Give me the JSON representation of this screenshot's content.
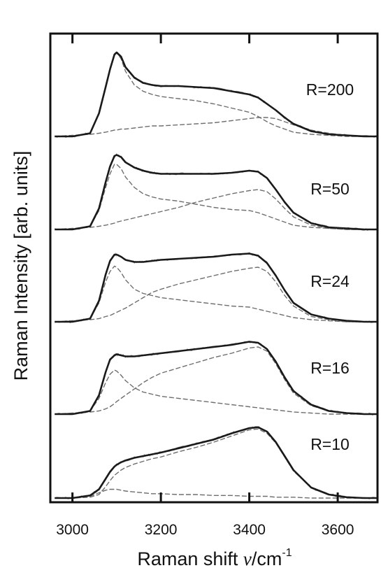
{
  "chart_data": {
    "type": "line",
    "xlabel": "Raman shift",
    "xlabel_symbol": "ν",
    "xlabel_unit": "/cm",
    "xlabel_exp": "-1",
    "ylabel": "Raman Intensity [arb. units]",
    "xlim": [
      2950,
      3690
    ],
    "x_ticks": [
      3000,
      3200,
      3400,
      3600
    ],
    "grid": false,
    "stacking": "vertically offset spectra, R=10 at bottom to R=200 at top",
    "colors": {
      "total": "#1a1a1a",
      "component": "#6e6e6e",
      "axis": "#111111"
    },
    "panels": [
      {
        "label": "R=200",
        "x": [
          2960,
          3000,
          3040,
          3060,
          3075,
          3085,
          3095,
          3100,
          3110,
          3120,
          3140,
          3160,
          3180,
          3200,
          3240,
          3280,
          3320,
          3360,
          3400,
          3420,
          3440,
          3460,
          3480,
          3500,
          3540,
          3580,
          3620,
          3660,
          3690
        ],
        "total": [
          0.0,
          0.0,
          0.03,
          0.22,
          0.47,
          0.64,
          0.78,
          0.8,
          0.76,
          0.66,
          0.56,
          0.51,
          0.49,
          0.48,
          0.48,
          0.47,
          0.46,
          0.43,
          0.4,
          0.37,
          0.31,
          0.25,
          0.18,
          0.12,
          0.05,
          0.02,
          0.01,
          0.0,
          0.0
        ],
        "components": [
          {
            "values": [
              0.0,
              0.0,
              0.03,
              0.22,
              0.47,
              0.64,
              0.78,
              0.8,
              0.74,
              0.62,
              0.49,
              0.43,
              0.4,
              0.38,
              0.36,
              0.34,
              0.31,
              0.27,
              0.23,
              0.19,
              0.14,
              0.1,
              0.07,
              0.04,
              0.02,
              0.01,
              0.0,
              0.0,
              0.0
            ]
          },
          {
            "values": [
              0.0,
              0.01,
              0.02,
              0.03,
              0.04,
              0.05,
              0.06,
              0.06,
              0.07,
              0.07,
              0.08,
              0.09,
              0.1,
              0.1,
              0.11,
              0.12,
              0.13,
              0.15,
              0.17,
              0.18,
              0.18,
              0.17,
              0.14,
              0.11,
              0.06,
              0.03,
              0.01,
              0.0,
              0.0
            ]
          }
        ]
      },
      {
        "label": "R=50",
        "x": [
          2960,
          3000,
          3040,
          3060,
          3075,
          3085,
          3095,
          3100,
          3110,
          3120,
          3140,
          3160,
          3180,
          3200,
          3240,
          3280,
          3320,
          3360,
          3400,
          3420,
          3440,
          3460,
          3480,
          3500,
          3540,
          3580,
          3620,
          3660,
          3690
        ],
        "total": [
          0.0,
          0.0,
          0.03,
          0.2,
          0.45,
          0.6,
          0.7,
          0.71,
          0.69,
          0.64,
          0.59,
          0.56,
          0.54,
          0.53,
          0.53,
          0.53,
          0.53,
          0.54,
          0.56,
          0.55,
          0.49,
          0.38,
          0.26,
          0.16,
          0.06,
          0.02,
          0.01,
          0.0,
          0.0
        ],
        "components": [
          {
            "values": [
              0.0,
              0.0,
              0.03,
              0.18,
              0.4,
              0.53,
              0.62,
              0.62,
              0.58,
              0.5,
              0.4,
              0.34,
              0.31,
              0.29,
              0.27,
              0.24,
              0.21,
              0.19,
              0.18,
              0.16,
              0.13,
              0.1,
              0.07,
              0.04,
              0.02,
              0.01,
              0.0,
              0.0,
              0.0
            ]
          },
          {
            "values": [
              0.0,
              0.01,
              0.02,
              0.03,
              0.04,
              0.05,
              0.06,
              0.07,
              0.08,
              0.09,
              0.11,
              0.13,
              0.15,
              0.17,
              0.21,
              0.26,
              0.3,
              0.34,
              0.37,
              0.38,
              0.36,
              0.29,
              0.2,
              0.12,
              0.04,
              0.01,
              0.0,
              0.0,
              0.0
            ]
          }
        ]
      },
      {
        "label": "R=24",
        "x": [
          2960,
          3000,
          3040,
          3060,
          3075,
          3085,
          3095,
          3100,
          3110,
          3120,
          3140,
          3160,
          3180,
          3200,
          3240,
          3280,
          3320,
          3360,
          3400,
          3420,
          3440,
          3460,
          3480,
          3500,
          3540,
          3580,
          3620,
          3660,
          3690
        ],
        "total": [
          0.0,
          0.0,
          0.03,
          0.2,
          0.45,
          0.58,
          0.64,
          0.64,
          0.62,
          0.59,
          0.57,
          0.57,
          0.58,
          0.59,
          0.6,
          0.61,
          0.62,
          0.64,
          0.65,
          0.63,
          0.56,
          0.44,
          0.3,
          0.18,
          0.07,
          0.03,
          0.01,
          0.0,
          0.0
        ],
        "components": [
          {
            "values": [
              0.0,
              0.0,
              0.03,
              0.18,
              0.38,
              0.48,
              0.53,
              0.52,
              0.47,
              0.4,
              0.31,
              0.27,
              0.25,
              0.23,
              0.21,
              0.19,
              0.17,
              0.15,
              0.14,
              0.12,
              0.1,
              0.08,
              0.06,
              0.04,
              0.02,
              0.01,
              0.0,
              0.0,
              0.0
            ]
          },
          {
            "values": [
              0.0,
              0.01,
              0.02,
              0.03,
              0.05,
              0.06,
              0.08,
              0.09,
              0.11,
              0.13,
              0.18,
              0.23,
              0.28,
              0.31,
              0.36,
              0.4,
              0.44,
              0.48,
              0.51,
              0.52,
              0.48,
              0.38,
              0.25,
              0.15,
              0.05,
              0.02,
              0.0,
              0.0,
              0.0
            ]
          }
        ]
      },
      {
        "label": "R=16",
        "x": [
          2960,
          3000,
          3040,
          3060,
          3075,
          3085,
          3095,
          3100,
          3110,
          3120,
          3140,
          3160,
          3180,
          3200,
          3240,
          3280,
          3320,
          3360,
          3400,
          3420,
          3440,
          3460,
          3480,
          3500,
          3540,
          3580,
          3620,
          3660,
          3690
        ],
        "total": [
          0.0,
          0.0,
          0.03,
          0.18,
          0.4,
          0.52,
          0.56,
          0.57,
          0.56,
          0.55,
          0.55,
          0.56,
          0.57,
          0.58,
          0.6,
          0.62,
          0.64,
          0.66,
          0.69,
          0.68,
          0.62,
          0.5,
          0.35,
          0.22,
          0.09,
          0.03,
          0.01,
          0.0,
          0.0
        ],
        "components": [
          {
            "values": [
              0.0,
              0.0,
              0.03,
              0.15,
              0.3,
              0.38,
              0.42,
              0.41,
              0.37,
              0.32,
              0.25,
              0.21,
              0.19,
              0.17,
              0.15,
              0.13,
              0.11,
              0.09,
              0.07,
              0.06,
              0.05,
              0.04,
              0.03,
              0.02,
              0.01,
              0.0,
              0.0,
              0.0,
              0.0
            ]
          },
          {
            "values": [
              0.0,
              0.01,
              0.02,
              0.03,
              0.05,
              0.07,
              0.1,
              0.12,
              0.15,
              0.18,
              0.24,
              0.3,
              0.35,
              0.39,
              0.44,
              0.49,
              0.54,
              0.58,
              0.63,
              0.64,
              0.6,
              0.48,
              0.33,
              0.2,
              0.08,
              0.03,
              0.01,
              0.0,
              0.0
            ]
          }
        ]
      },
      {
        "label": "R=10",
        "x": [
          2960,
          3000,
          3040,
          3060,
          3075,
          3085,
          3095,
          3100,
          3110,
          3120,
          3140,
          3160,
          3180,
          3200,
          3240,
          3280,
          3320,
          3360,
          3400,
          3420,
          3440,
          3460,
          3480,
          3500,
          3540,
          3580,
          3620,
          3660,
          3690
        ],
        "total": [
          0.0,
          0.0,
          0.03,
          0.1,
          0.22,
          0.3,
          0.36,
          0.38,
          0.41,
          0.43,
          0.46,
          0.48,
          0.5,
          0.52,
          0.57,
          0.62,
          0.67,
          0.74,
          0.8,
          0.81,
          0.76,
          0.64,
          0.48,
          0.32,
          0.12,
          0.04,
          0.01,
          0.0,
          0.0
        ],
        "components": [
          {
            "values": [
              0.0,
              0.0,
              0.02,
              0.06,
              0.09,
              0.1,
              0.1,
              0.1,
              0.09,
              0.08,
              0.07,
              0.06,
              0.05,
              0.05,
              0.04,
              0.04,
              0.03,
              0.03,
              0.02,
              0.02,
              0.02,
              0.01,
              0.01,
              0.01,
              0.0,
              0.0,
              0.0,
              0.0,
              0.0
            ]
          },
          {
            "values": [
              0.0,
              0.0,
              0.01,
              0.04,
              0.13,
              0.2,
              0.26,
              0.28,
              0.32,
              0.35,
              0.39,
              0.42,
              0.45,
              0.47,
              0.53,
              0.58,
              0.64,
              0.71,
              0.78,
              0.79,
              0.74,
              0.63,
              0.47,
              0.31,
              0.12,
              0.04,
              0.01,
              0.0,
              0.0
            ]
          }
        ]
      }
    ]
  }
}
